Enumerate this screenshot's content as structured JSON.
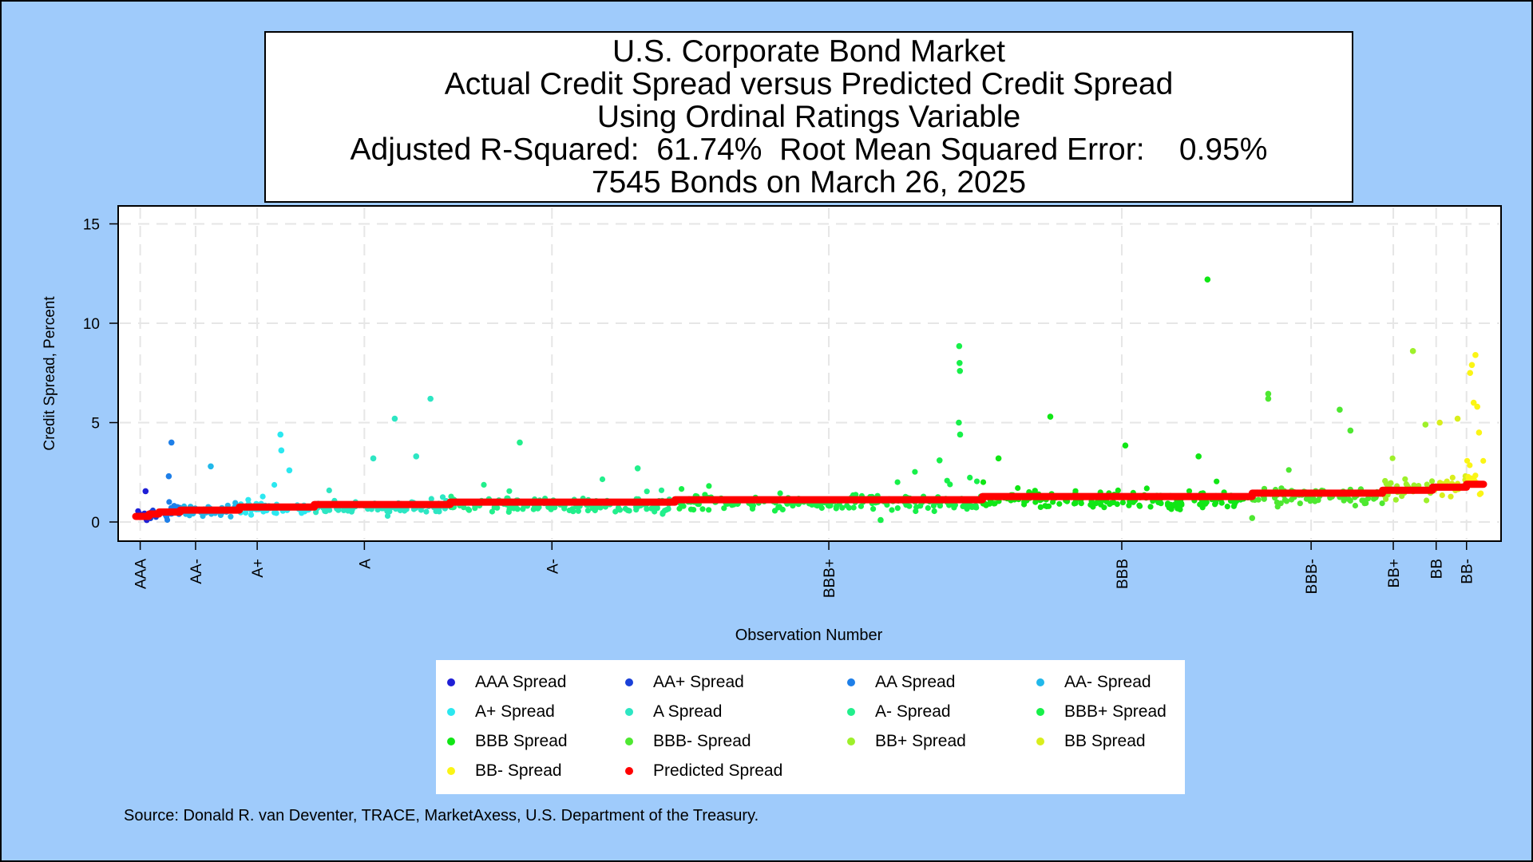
{
  "title_lines": [
    "U.S. Corporate Bond Market",
    "Actual Credit Spread versus Predicted Credit Spread",
    "Using Ordinal Ratings Variable",
    "Adjusted R-Squared:  61.74%  Root Mean Squared Error:    0.95%",
    "7545 Bonds on March 26, 2025"
  ],
  "source": "Source: Donald R. van Deventer, TRACE, MarketAxess, U.S. Department of the Treasury.",
  "chart_data": {
    "type": "scatter",
    "title": "U.S. Corporate Bond Market - Actual Credit Spread versus Predicted Credit Spread Using Ordinal Ratings Variable",
    "xlabel": "Observation Number",
    "ylabel": "Credit Spread, Percent",
    "xlim": [
      0,
      7545
    ],
    "ylim": [
      -0.9,
      15.5
    ],
    "yticks": [
      0,
      5,
      10,
      15
    ],
    "grid": true,
    "legend_position": "bottom",
    "ratings": [
      {
        "label": "AAA",
        "name": "AAA Spread",
        "color": "#1f1fd6",
        "start": 0,
        "end": 75,
        "pred": 0.28,
        "base": 0.3,
        "sd": 0.25
      },
      {
        "label": "AA+",
        "name": "AA+ Spread",
        "color": "#1a40d8",
        "start": 75,
        "end": 130,
        "pred": 0.4,
        "base": 0.35,
        "sd": 0.25
      },
      {
        "label": "AA",
        "name": "AA Spread",
        "color": "#1e7fe8",
        "start": 130,
        "end": 250,
        "pred": 0.5,
        "base": 0.5,
        "sd": 0.3
      },
      {
        "label": "AA-",
        "name": "AA- Spread",
        "color": "#21b8ea",
        "start": 250,
        "end": 580,
        "pred": 0.6,
        "base": 0.55,
        "sd": 0.3
      },
      {
        "label": "A+",
        "name": "A+ Spread",
        "color": "#2be8f0",
        "start": 580,
        "end": 1000,
        "pred": 0.75,
        "base": 0.65,
        "sd": 0.3
      },
      {
        "label": "A",
        "name": "A Spread",
        "color": "#2de6c3",
        "start": 1000,
        "end": 1760,
        "pred": 0.88,
        "base": 0.75,
        "sd": 0.3
      },
      {
        "label": "A-",
        "name": "A- Spread",
        "color": "#22ef8c",
        "start": 1760,
        "end": 3020,
        "pred": 1.0,
        "base": 0.85,
        "sd": 0.35
      },
      {
        "label": "BBB+",
        "name": "BBB+ Spread",
        "color": "#17f049",
        "start": 3020,
        "end": 4740,
        "pred": 1.12,
        "base": 0.95,
        "sd": 0.4
      },
      {
        "label": "BBB",
        "name": "BBB Spread",
        "color": "#10e615",
        "start": 4740,
        "end": 6250,
        "pred": 1.28,
        "base": 1.1,
        "sd": 0.4
      },
      {
        "label": "BBB-",
        "name": "BBB- Spread",
        "color": "#4ee831",
        "start": 6250,
        "end": 6980,
        "pred": 1.45,
        "base": 1.3,
        "sd": 0.45
      },
      {
        "label": "BB+",
        "name": "BB+ Spread",
        "color": "#9ef02a",
        "start": 6980,
        "end": 7260,
        "pred": 1.6,
        "base": 1.6,
        "sd": 0.6
      },
      {
        "label": "BB",
        "name": "BB Spread",
        "color": "#d9ee1c",
        "start": 7260,
        "end": 7450,
        "pred": 1.75,
        "base": 1.8,
        "sd": 0.7
      },
      {
        "label": "BB-",
        "name": "BB- Spread",
        "color": "#fbf515",
        "start": 7450,
        "end": 7545,
        "pred": 1.9,
        "base": 2.2,
        "sd": 1.1
      }
    ],
    "predicted": {
      "name": "Predicted Spread",
      "color": "#ff0000"
    },
    "rating_ticks": [
      {
        "label": "AAA",
        "x": 25
      },
      {
        "label": "AA-",
        "x": 335
      },
      {
        "label": "A+",
        "x": 680
      },
      {
        "label": "A",
        "x": 1280
      },
      {
        "label": "A-",
        "x": 2330
      },
      {
        "label": "BBB+",
        "x": 3880
      },
      {
        "label": "BBB",
        "x": 5520
      },
      {
        "label": "BBB-",
        "x": 6580
      },
      {
        "label": "BB+",
        "x": 7040
      },
      {
        "label": "BB",
        "x": 7280
      },
      {
        "label": "BB-",
        "x": 7450
      }
    ],
    "outliers": [
      {
        "x": 200,
        "y": 4.0
      },
      {
        "x": 185,
        "y": 2.3
      },
      {
        "x": 55,
        "y": 1.55
      },
      {
        "x": 420,
        "y": 2.8
      },
      {
        "x": 810,
        "y": 4.4
      },
      {
        "x": 815,
        "y": 3.6
      },
      {
        "x": 860,
        "y": 2.6
      },
      {
        "x": 1650,
        "y": 6.2
      },
      {
        "x": 1450,
        "y": 5.2
      },
      {
        "x": 1330,
        "y": 3.2
      },
      {
        "x": 1570,
        "y": 3.3
      },
      {
        "x": 2150,
        "y": 4.0
      },
      {
        "x": 2810,
        "y": 2.7
      },
      {
        "x": 4610,
        "y": 8.85
      },
      {
        "x": 4612,
        "y": 8.0
      },
      {
        "x": 4614,
        "y": 7.6
      },
      {
        "x": 4608,
        "y": 5.0
      },
      {
        "x": 4615,
        "y": 4.4
      },
      {
        "x": 4500,
        "y": 3.1
      },
      {
        "x": 4170,
        "y": 0.1
      },
      {
        "x": 4830,
        "y": 3.2
      },
      {
        "x": 5120,
        "y": 5.3
      },
      {
        "x": 5540,
        "y": 3.85
      },
      {
        "x": 5950,
        "y": 3.3
      },
      {
        "x": 6000,
        "y": 12.2
      },
      {
        "x": 6340,
        "y": 6.45
      },
      {
        "x": 6340,
        "y": 6.2
      },
      {
        "x": 6250,
        "y": 0.2
      },
      {
        "x": 6740,
        "y": 5.65
      },
      {
        "x": 6800,
        "y": 4.6
      },
      {
        "x": 7150,
        "y": 8.6
      },
      {
        "x": 7220,
        "y": 4.9
      },
      {
        "x": 7300,
        "y": 5.0
      },
      {
        "x": 7400,
        "y": 5.2
      },
      {
        "x": 7500,
        "y": 8.4
      },
      {
        "x": 7480,
        "y": 7.9
      },
      {
        "x": 7470,
        "y": 7.5
      },
      {
        "x": 7490,
        "y": 6.0
      },
      {
        "x": 7510,
        "y": 5.8
      },
      {
        "x": 7520,
        "y": 4.5
      }
    ]
  }
}
